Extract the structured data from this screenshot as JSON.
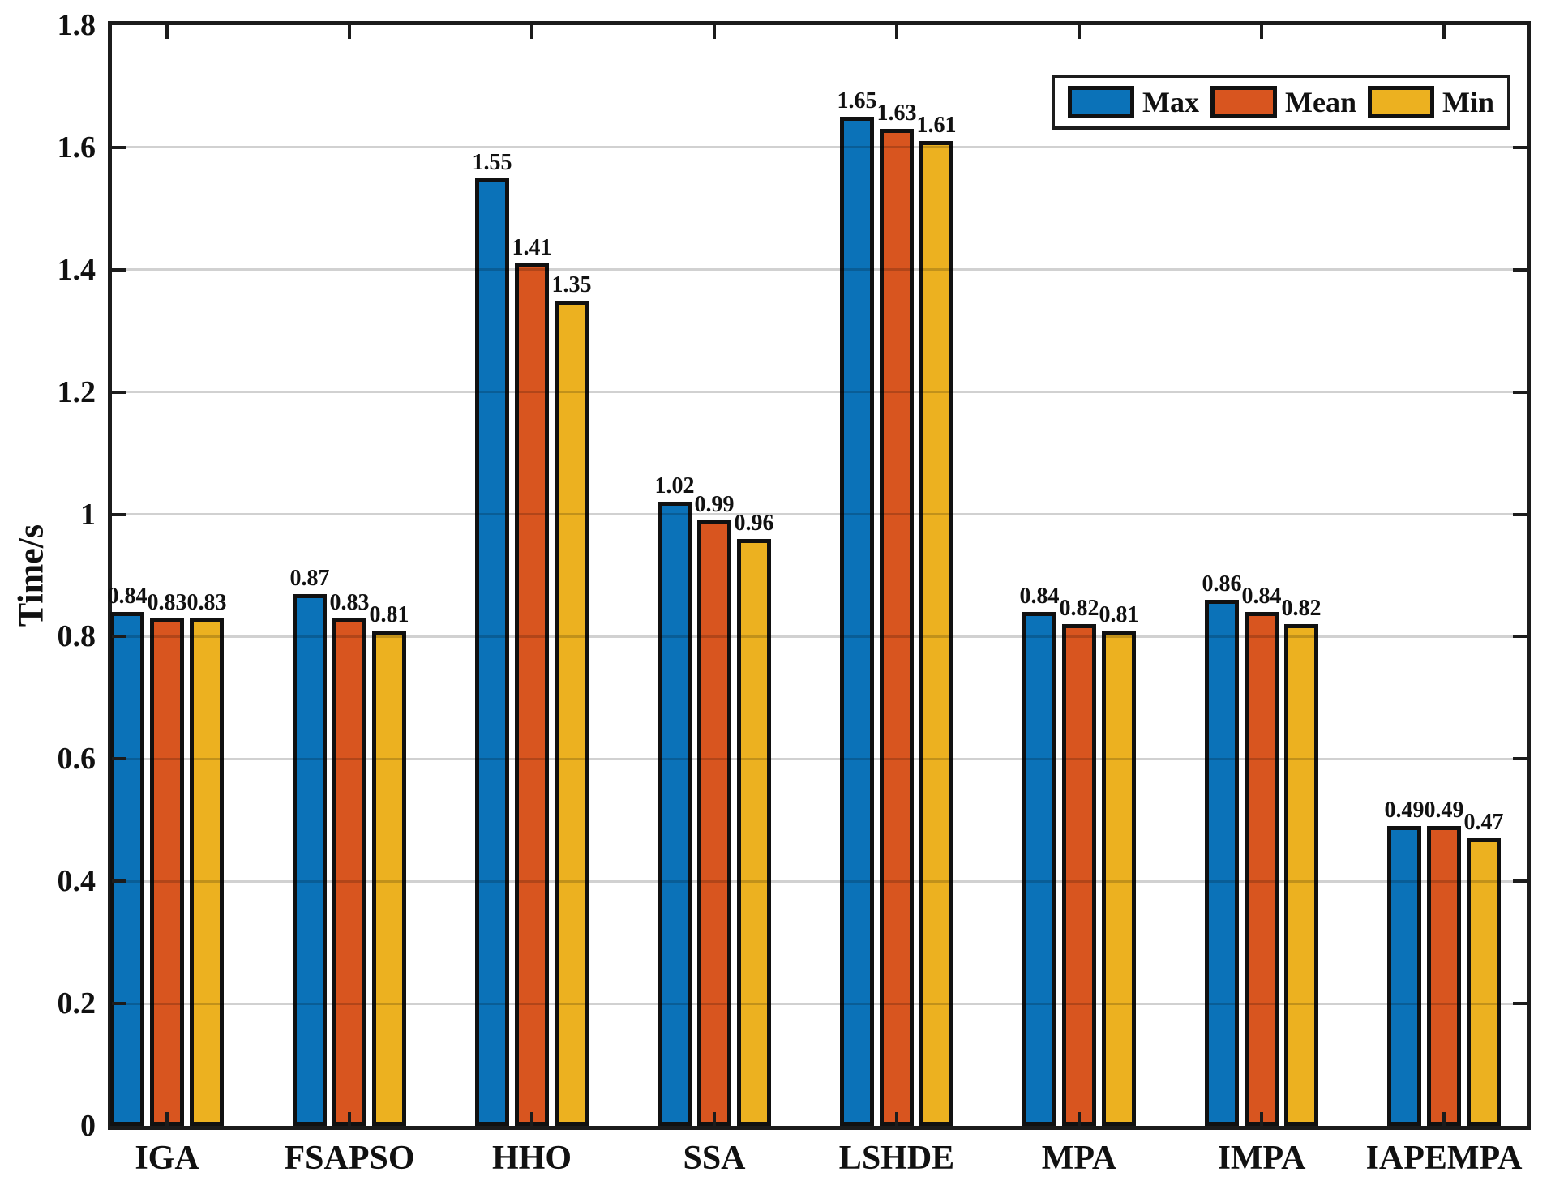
{
  "figure": {
    "background": "#ffffff",
    "axis_color": "#1c1c1c",
    "bar_edge_color": "#111111",
    "grid_color": "rgba(0,0,0,0.18)",
    "text_color": "#111111"
  },
  "chart_data": {
    "type": "bar",
    "title": "",
    "xlabel": "",
    "ylabel": "Time/s",
    "ylim": [
      0,
      1.8
    ],
    "grid": "horizontal",
    "legend_position": "top-right",
    "legend_entries": [
      "Max",
      "Mean",
      "Min"
    ],
    "ytick_values": [
      0,
      0.2,
      0.4,
      0.6,
      0.8,
      1,
      1.2,
      1.4,
      1.6,
      1.8
    ],
    "ytick_labels": [
      "0",
      "0.2",
      "0.4",
      "0.6",
      "0.8",
      "1",
      "1.2",
      "1.4",
      "1.6",
      "1.8"
    ],
    "categories": [
      "IGA",
      "FSAPSO",
      "HHO",
      "SSA",
      "LSHDE",
      "MPA",
      "IMPA",
      "IAPEMPA"
    ],
    "series": [
      {
        "name": "Max",
        "color": "#0B72B8",
        "values": [
          0.84,
          0.87,
          1.55,
          1.02,
          1.65,
          0.84,
          0.86,
          0.49
        ]
      },
      {
        "name": "Mean",
        "color": "#D8551F",
        "values": [
          0.83,
          0.83,
          1.41,
          0.99,
          1.63,
          0.82,
          0.84,
          0.49
        ]
      },
      {
        "name": "Min",
        "color": "#ECB120",
        "values": [
          0.83,
          0.81,
          1.35,
          0.96,
          1.61,
          0.81,
          0.82,
          0.47
        ]
      }
    ],
    "bar_value_labels": [
      [
        "0.84",
        "0.87",
        "1.55",
        "1.02",
        "1.65",
        "0.84",
        "0.86",
        "0.49"
      ],
      [
        "0.83",
        "0.83",
        "1.41",
        "0.99",
        "1.63",
        "0.82",
        "0.84",
        "0.49"
      ],
      [
        "0.83",
        "0.81",
        "1.35",
        "0.96",
        "1.61",
        "0.81",
        "0.82",
        "0.47"
      ]
    ]
  }
}
